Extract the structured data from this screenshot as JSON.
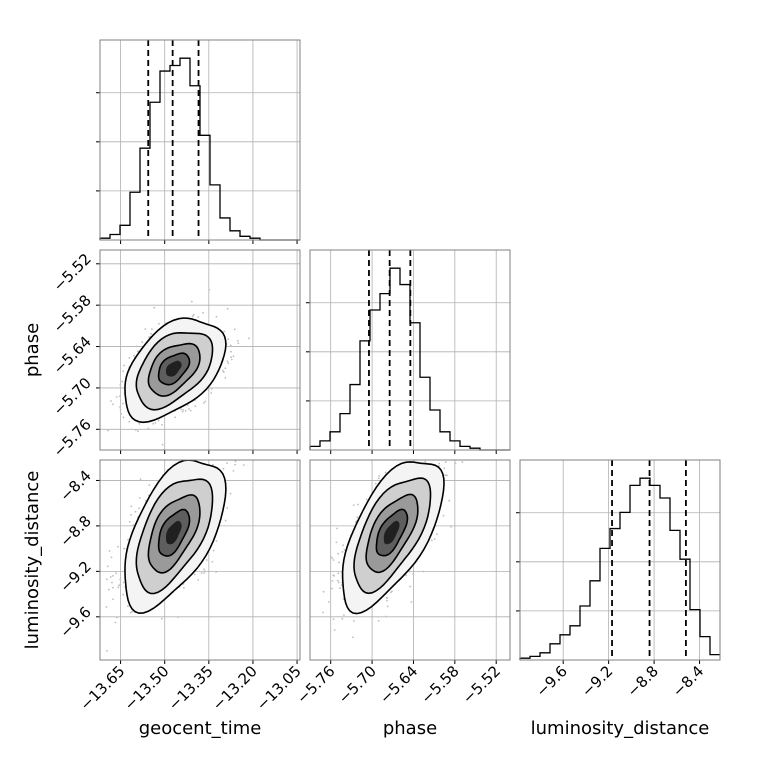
{
  "chart_data": {
    "type": "corner",
    "parameters": [
      {
        "name": "geocent_time",
        "label": "geocent_time",
        "range": [
          -13.72,
          -13.04
        ],
        "ticks": [
          "-13.65",
          "-13.50",
          "-13.35",
          "-13.20",
          "-13.05"
        ],
        "tick_values": [
          -13.65,
          -13.5,
          -13.35,
          -13.2,
          -13.05
        ]
      },
      {
        "name": "phase",
        "label": "phase",
        "range": [
          -5.79,
          -5.5
        ],
        "ticks": [
          "-5.76",
          "-5.70",
          "-5.64",
          "-5.58",
          "-5.52"
        ],
        "tick_values": [
          -5.76,
          -5.7,
          -5.64,
          -5.58,
          -5.52
        ]
      },
      {
        "name": "luminosity_distance",
        "label": "luminosity_distance",
        "range": [
          -9.98,
          -8.22
        ],
        "ticks": [
          "-9.6",
          "-9.2",
          "-8.8",
          "-8.4"
        ],
        "tick_values": [
          -9.6,
          -9.2,
          -8.8,
          -8.4
        ]
      }
    ],
    "histograms": [
      {
        "parameter": "geocent_time",
        "bin_edges": [
          -13.72,
          -13.686,
          -13.652,
          -13.618,
          -13.584,
          -13.55,
          -13.516,
          -13.482,
          -13.448,
          -13.414,
          -13.38,
          -13.346,
          -13.312,
          -13.278,
          -13.244,
          -13.21,
          -13.176,
          -13.142,
          -13.108,
          -13.074,
          -13.04
        ],
        "counts": [
          1,
          3,
          8,
          26,
          50,
          75,
          92,
          95,
          99,
          84,
          57,
          30,
          12,
          5,
          2,
          1,
          0,
          0,
          0,
          0
        ],
        "quantiles": [
          -13.556,
          -13.473,
          -13.385
        ]
      },
      {
        "parameter": "phase",
        "bin_edges": [
          -5.79,
          -5.7755,
          -5.761,
          -5.7465,
          -5.732,
          -5.7175,
          -5.703,
          -5.6885,
          -5.674,
          -5.6595,
          -5.645,
          -5.6305,
          -5.616,
          -5.6015,
          -5.587,
          -5.5725,
          -5.558,
          -5.5435,
          -5.529,
          -5.5145,
          -5.5
        ],
        "counts": [
          2,
          5,
          10,
          20,
          36,
          60,
          77,
          86,
          100,
          91,
          70,
          40,
          22,
          10,
          5,
          2,
          1,
          0,
          0,
          0
        ],
        "quantiles": [
          -5.7045,
          -5.6745,
          -5.6445
        ]
      },
      {
        "parameter": "luminosity_distance",
        "bin_edges": [
          -9.98,
          -9.892,
          -9.804,
          -9.716,
          -9.628,
          -9.54,
          -9.452,
          -9.364,
          -9.276,
          -9.188,
          -9.1,
          -9.012,
          -8.924,
          -8.836,
          -8.748,
          -8.66,
          -8.572,
          -8.484,
          -8.396,
          -8.308,
          -8.22
        ],
        "counts": [
          1,
          2,
          4,
          9,
          14,
          19,
          30,
          44,
          62,
          73,
          82,
          97,
          101,
          97,
          90,
          72,
          56,
          28,
          13,
          3
        ],
        "quantiles": [
          -9.17,
          -8.84,
          -8.52
        ]
      }
    ],
    "joint_2d": [
      {
        "x": "geocent_time",
        "y": "phase",
        "mean": [
          -13.47,
          -5.672
        ],
        "sd": [
          0.07,
          0.03
        ],
        "corr": 0.45
      },
      {
        "x": "geocent_time",
        "y": "luminosity_distance",
        "mean": [
          -13.47,
          -8.86
        ],
        "sd": [
          0.07,
          0.27
        ],
        "corr": 0.55
      },
      {
        "x": "phase",
        "y": "luminosity_distance",
        "mean": [
          -5.672,
          -8.86
        ],
        "sd": [
          0.03,
          0.27
        ],
        "corr": 0.62
      }
    ],
    "grid": true,
    "colors": {
      "line": "#000000",
      "scatter": "#bdbdbd",
      "grid": "#b0b0b0",
      "frame": "#808080"
    }
  }
}
